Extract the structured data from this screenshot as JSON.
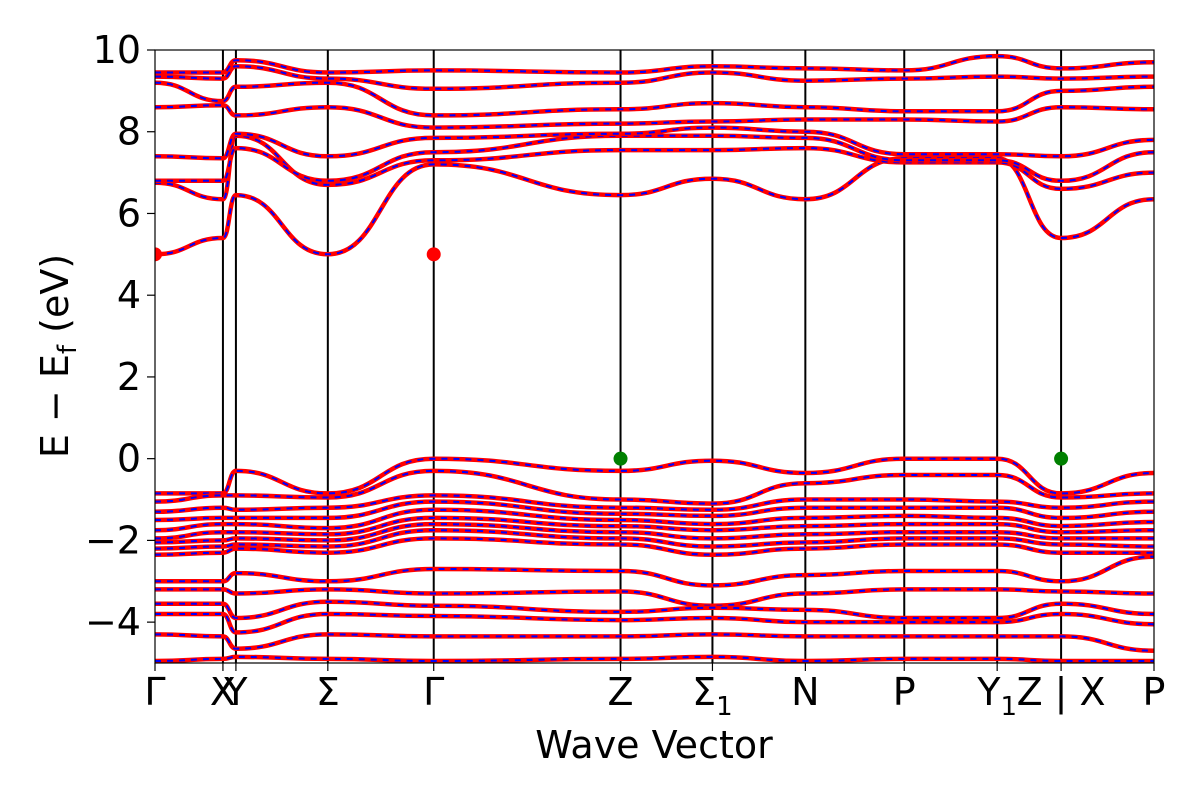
{
  "chart_data": {
    "type": "line",
    "title": "",
    "xlabel": "Wave Vector",
    "ylabel": "E − E",
    "ylabel_sub": "f",
    "ylabel_unit": "(eV)",
    "ylim": [
      -5,
      10
    ],
    "y_ticks": [
      {
        "value": 10,
        "label": "10"
      },
      {
        "value": 8,
        "label": "8"
      },
      {
        "value": 6,
        "label": "6"
      },
      {
        "value": 4,
        "label": "4"
      },
      {
        "value": 2,
        "label": "2"
      },
      {
        "value": 0,
        "label": "0"
      },
      {
        "value": -2,
        "label": "−2"
      },
      {
        "value": -4,
        "label": "−4"
      }
    ],
    "xlim": [
      0,
      1
    ],
    "x_ticks": [
      {
        "position": 0.0,
        "label": "Γ",
        "sub": ""
      },
      {
        "position": 0.068,
        "label": "X",
        "sub": ""
      },
      {
        "position": 0.081,
        "label": "Y",
        "sub": ""
      },
      {
        "position": 0.173,
        "label": "Σ",
        "sub": ""
      },
      {
        "position": 0.279,
        "label": "Γ",
        "sub": ""
      },
      {
        "position": 0.466,
        "label": "Z",
        "sub": ""
      },
      {
        "position": 0.558,
        "label": "Σ",
        "sub": "1"
      },
      {
        "position": 0.651,
        "label": "N",
        "sub": ""
      },
      {
        "position": 0.75,
        "label": "P",
        "sub": ""
      },
      {
        "position": 0.843,
        "label": "Y",
        "sub": "1"
      },
      {
        "position": 0.907,
        "label": "Z | X",
        "sub": ""
      },
      {
        "position": 1.0,
        "label": "P",
        "sub": ""
      }
    ],
    "series_style": {
      "primary_color": "#ff0000",
      "overlay_color": "#0000ff",
      "overlay_dash": "dashed"
    },
    "bands": [
      [
        5.0,
        5.4,
        6.45,
        5.0,
        7.2,
        6.45,
        6.85,
        6.35,
        7.35,
        7.35,
        5.4,
        6.35
      ],
      [
        6.75,
        6.35,
        7.9,
        6.7,
        7.3,
        7.55,
        7.55,
        7.6,
        7.25,
        7.25,
        6.6,
        7.0
      ],
      [
        6.8,
        6.8,
        7.6,
        6.8,
        7.5,
        7.9,
        7.9,
        7.85,
        7.3,
        7.3,
        6.8,
        7.5
      ],
      [
        7.4,
        7.35,
        7.95,
        7.4,
        7.85,
        7.95,
        8.1,
        8.0,
        7.45,
        7.45,
        7.4,
        7.8
      ],
      [
        8.6,
        8.65,
        8.4,
        8.6,
        8.1,
        8.2,
        8.25,
        8.3,
        8.3,
        8.25,
        8.6,
        8.55
      ],
      [
        9.2,
        8.75,
        9.1,
        9.2,
        8.4,
        8.55,
        8.7,
        8.6,
        8.5,
        8.5,
        9.0,
        9.1
      ],
      [
        9.35,
        9.3,
        9.6,
        9.3,
        9.05,
        9.2,
        9.45,
        9.25,
        9.3,
        9.35,
        9.3,
        9.35
      ],
      [
        9.45,
        9.45,
        9.75,
        9.45,
        9.5,
        9.45,
        9.6,
        9.55,
        9.5,
        9.85,
        9.55,
        9.7
      ],
      [
        -0.85,
        -0.85,
        -0.3,
        -0.85,
        0.0,
        -0.3,
        -0.05,
        -0.35,
        0.0,
        0.0,
        -0.85,
        -0.35
      ],
      [
        -1.05,
        -0.9,
        -0.9,
        -0.95,
        -0.3,
        -1.0,
        -1.1,
        -0.6,
        -0.4,
        -0.4,
        -0.95,
        -0.85
      ],
      [
        -1.3,
        -1.2,
        -1.25,
        -1.2,
        -0.9,
        -1.2,
        -1.25,
        -1.0,
        -1.0,
        -1.05,
        -1.2,
        -1.05
      ],
      [
        -1.5,
        -1.45,
        -1.45,
        -1.45,
        -1.05,
        -1.35,
        -1.4,
        -1.2,
        -1.2,
        -1.2,
        -1.45,
        -1.3
      ],
      [
        -1.75,
        -1.6,
        -1.6,
        -1.7,
        -1.25,
        -1.5,
        -1.6,
        -1.45,
        -1.4,
        -1.45,
        -1.65,
        -1.55
      ],
      [
        -1.95,
        -1.8,
        -1.8,
        -1.85,
        -1.45,
        -1.65,
        -1.75,
        -1.65,
        -1.6,
        -1.6,
        -1.8,
        -1.75
      ],
      [
        -2.05,
        -2.0,
        -1.95,
        -2.0,
        -1.6,
        -1.8,
        -1.95,
        -1.85,
        -1.8,
        -1.8,
        -1.95,
        -1.95
      ],
      [
        -2.2,
        -2.15,
        -2.1,
        -2.15,
        -1.75,
        -1.95,
        -2.15,
        -2.05,
        -1.95,
        -1.95,
        -2.1,
        -2.15
      ],
      [
        -2.35,
        -2.3,
        -2.2,
        -2.3,
        -1.95,
        -2.1,
        -2.35,
        -2.2,
        -2.1,
        -2.1,
        -2.3,
        -2.3
      ],
      [
        -3.0,
        -3.0,
        -2.8,
        -3.0,
        -2.7,
        -2.75,
        -3.1,
        -2.85,
        -2.75,
        -2.75,
        -3.0,
        -2.4
      ],
      [
        -3.2,
        -3.2,
        -3.3,
        -3.2,
        -3.3,
        -3.25,
        -3.6,
        -3.3,
        -3.2,
        -3.2,
        -3.25,
        -3.3
      ],
      [
        -3.55,
        -3.55,
        -3.9,
        -3.5,
        -3.6,
        -3.75,
        -3.65,
        -3.7,
        -3.9,
        -3.9,
        -3.55,
        -3.8
      ],
      [
        -3.8,
        -3.8,
        -4.25,
        -3.8,
        -3.85,
        -3.95,
        -3.9,
        -4.0,
        -4.0,
        -4.0,
        -3.8,
        -4.05
      ],
      [
        -4.3,
        -4.35,
        -4.65,
        -4.3,
        -4.35,
        -4.35,
        -4.3,
        -4.35,
        -4.35,
        -4.35,
        -4.35,
        -4.7
      ],
      [
        -4.95,
        -4.9,
        -4.85,
        -4.9,
        -4.95,
        -4.9,
        -4.85,
        -4.95,
        -4.9,
        -4.9,
        -4.95,
        -4.95
      ]
    ],
    "markers": [
      {
        "x": 0.0,
        "y": 5.0,
        "color": "#ff0000"
      },
      {
        "x": 0.279,
        "y": 5.0,
        "color": "#ff0000"
      },
      {
        "x": 0.466,
        "y": 0.0,
        "color": "#008000"
      },
      {
        "x": 0.907,
        "y": 0.0,
        "color": "#008000"
      }
    ]
  }
}
